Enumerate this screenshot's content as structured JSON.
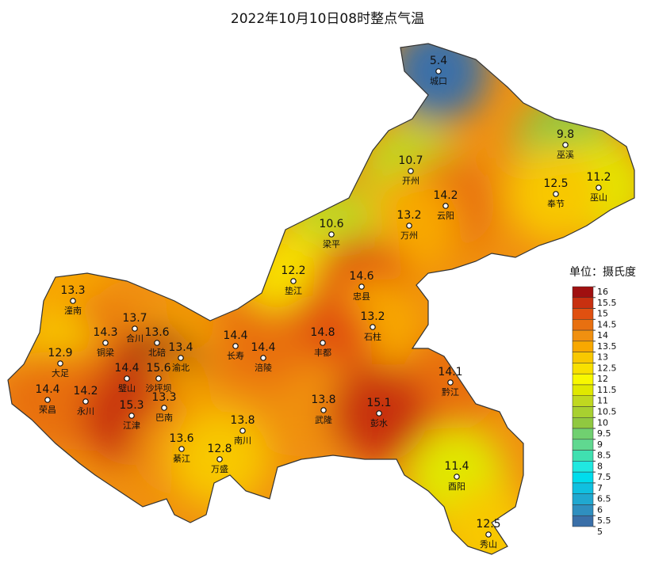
{
  "title": "2022年10月10日08时整点气温",
  "legend": {
    "title": "单位：摄氏度",
    "ticks": [
      16,
      15.5,
      15,
      14.5,
      14,
      13.5,
      13,
      12.5,
      12,
      11.5,
      11,
      10.5,
      10,
      9.5,
      9,
      8.5,
      8,
      7.5,
      7,
      6.5,
      6,
      5.5,
      5
    ],
    "colors": [
      "#a01010",
      "#c83010",
      "#e05010",
      "#e87010",
      "#f09010",
      "#f8a800",
      "#f8c800",
      "#f8e000",
      "#f8f800",
      "#e0e800",
      "#c0d820",
      "#a8d030",
      "#90c840",
      "#70d070",
      "#60d890",
      "#40e0b0",
      "#20e8e0",
      "#00dcec",
      "#10c0e0",
      "#20a8d0",
      "#2f8fbf",
      "#3a6fa8"
    ]
  },
  "stations": [
    {
      "name": "城口",
      "value": 5.4
    },
    {
      "name": "巫溪",
      "value": 9.8
    },
    {
      "name": "开州",
      "value": 10.7
    },
    {
      "name": "巫山",
      "value": 11.2
    },
    {
      "name": "奉节",
      "value": 12.5
    },
    {
      "name": "云阳",
      "value": 14.2
    },
    {
      "name": "万州",
      "value": 13.2
    },
    {
      "name": "梁平",
      "value": 10.6
    },
    {
      "name": "垫江",
      "value": 12.2
    },
    {
      "name": "忠县",
      "value": 14.6
    },
    {
      "name": "潼南",
      "value": 13.3
    },
    {
      "name": "合川",
      "value": 13.7
    },
    {
      "name": "石柱",
      "value": 13.2
    },
    {
      "name": "铜梁",
      "value": 14.3
    },
    {
      "name": "北碚",
      "value": 13.6
    },
    {
      "name": "丰都",
      "value": 14.8
    },
    {
      "name": "长寿",
      "value": 14.4
    },
    {
      "name": "渝北",
      "value": 13.4
    },
    {
      "name": "涪陵",
      "value": 14.4
    },
    {
      "name": "大足",
      "value": 12.9
    },
    {
      "name": "璧山",
      "value": 14.4
    },
    {
      "name": "沙坪坝",
      "value": 15.6
    },
    {
      "name": "黔江",
      "value": 14.1
    },
    {
      "name": "荣昌",
      "value": 14.4
    },
    {
      "name": "永川",
      "value": 14.2
    },
    {
      "name": "巴南",
      "value": 13.3
    },
    {
      "name": "武隆",
      "value": 13.8
    },
    {
      "name": "彭水",
      "value": 15.1
    },
    {
      "name": "江津",
      "value": 15.3
    },
    {
      "name": "南川",
      "value": 13.8
    },
    {
      "name": "綦江",
      "value": 13.6
    },
    {
      "name": "万盛",
      "value": 12.8
    },
    {
      "name": "酉阳",
      "value": 11.4
    },
    {
      "name": "秀山",
      "value": 12.5
    }
  ]
}
